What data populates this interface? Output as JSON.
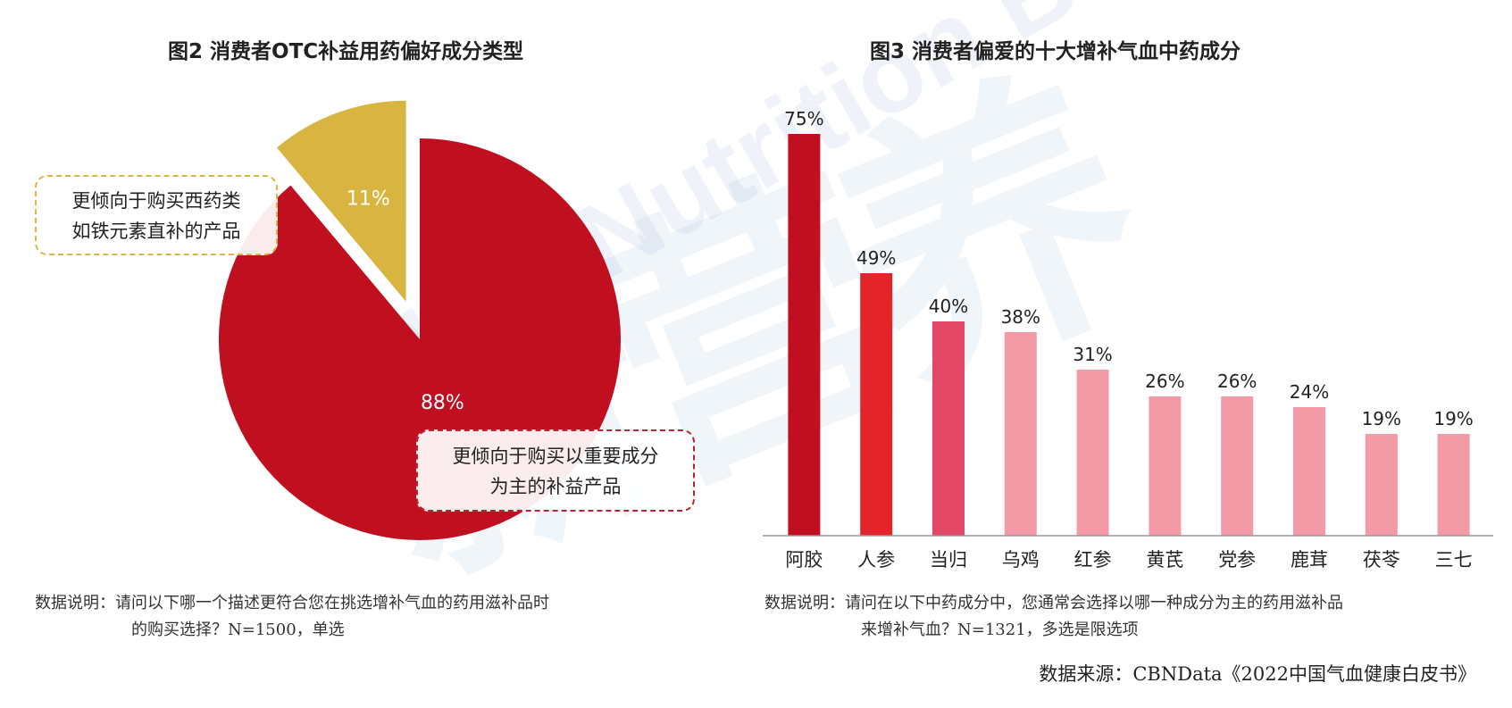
{
  "titles": {
    "left": "图2 消费者OTC补益用药偏好成分类型",
    "right": "图3 消费者偏爱的十大增补气血中药成分"
  },
  "watermark": {
    "cn": "新营养",
    "en": "New Nutrition Business"
  },
  "callouts": {
    "west": [
      "更倾向于购买西药类",
      "如铁元素直补的产品"
    ],
    "main": [
      "更倾向于购买以重要成分",
      "为主的补益产品"
    ]
  },
  "notes": {
    "left": {
      "label": "数据说明：",
      "line1": "请问以下哪一个描述更符合您在挑选增补气血的药用滋补品时",
      "line2": "的购买选择？N=1500，单选"
    },
    "right": {
      "label": "数据说明：",
      "line1": "请问在以下中药成分中，您通常会选择以哪一种成分为主的药用滋补品",
      "line2": "来增补气血？N=1321，多选是限选项"
    }
  },
  "source": "数据来源：CBNData《2022中国气血健康白皮书》",
  "chart_data": [
    {
      "type": "pie",
      "title": "图2 消费者OTC补益用药偏好成分类型",
      "slices": [
        {
          "label": "88%",
          "value": 88,
          "color": "#c0101f"
        },
        {
          "label": "11%",
          "value": 11,
          "color": "#d8b540",
          "exploded": true
        }
      ]
    },
    {
      "type": "bar",
      "title": "图3 消费者偏爱的十大增补气血中药成分",
      "categories": [
        "阿胶",
        "人参",
        "当归",
        "乌鸡",
        "红参",
        "黄芪",
        "党参",
        "鹿茸",
        "茯苓",
        "三七"
      ],
      "values": [
        75,
        49,
        40,
        38,
        31,
        26,
        26,
        24,
        19,
        19
      ],
      "value_labels": [
        "75%",
        "49%",
        "40%",
        "38%",
        "31%",
        "26%",
        "26%",
        "24%",
        "19%",
        "19%"
      ],
      "colors": [
        "#c0101f",
        "#e3242b",
        "#e54766",
        "#f29aa6",
        "#f29aa6",
        "#f29aa6",
        "#f29aa6",
        "#f29aa6",
        "#f29aa6",
        "#f29aa6"
      ],
      "ylim": [
        0,
        80
      ],
      "grid": false
    }
  ]
}
